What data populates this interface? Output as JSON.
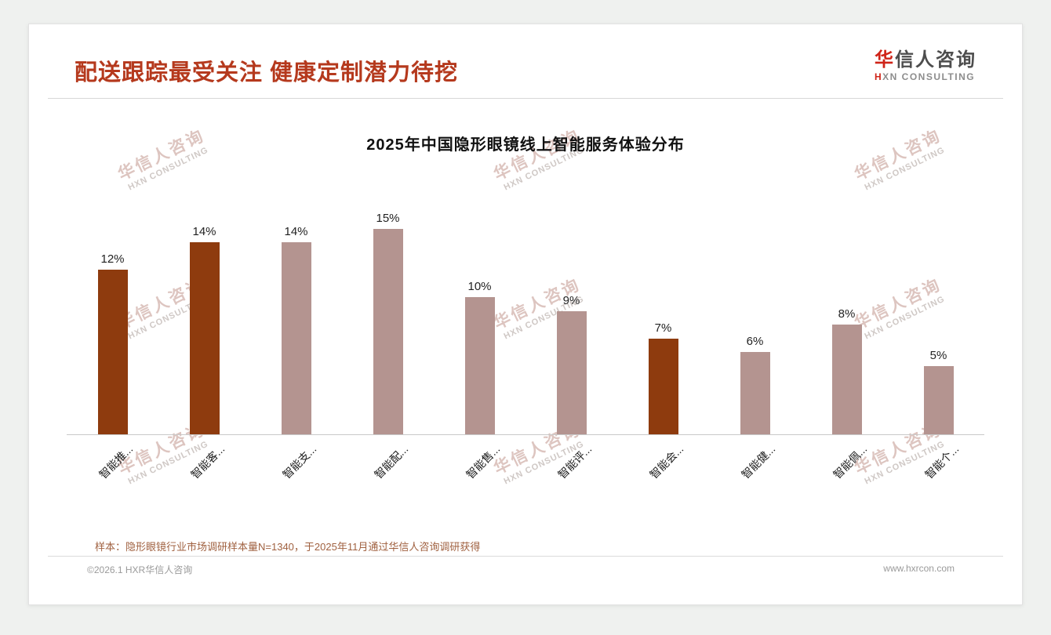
{
  "header": {
    "title": "配送跟踪最受关注 健康定制潜力待挖",
    "logo": {
      "cn": "华信人咨询",
      "en": "HXN CONSULTING"
    }
  },
  "chart_data": {
    "type": "bar",
    "title": "2025年中国隐形眼镜线上智能服务体验分布",
    "categories": [
      "智能推...",
      "智能客...",
      "智能支...",
      "智能配...",
      "智能售...",
      "智能评...",
      "智能会...",
      "智能健...",
      "智能佩...",
      "智能个..."
    ],
    "values": [
      12,
      14,
      14,
      15,
      10,
      9,
      7,
      6,
      8,
      5
    ],
    "unit": "%",
    "ylim": [
      0,
      16
    ],
    "grid": false,
    "legend": "none",
    "bar_color": "#b49490",
    "highlight_color": "#8e3b0e",
    "highlight_indexes": [
      0,
      1,
      6
    ]
  },
  "footnote": "样本：隐形眼镜行业市场调研样本量N=1340，于2025年11月通过华信人咨询调研获得",
  "footer": {
    "copyright": "©2026.1 HXR华信人咨询",
    "website": "www.hxrcon.com"
  },
  "watermark": {
    "line1": "华信人咨询",
    "line2": "HXN CONSULTING"
  }
}
